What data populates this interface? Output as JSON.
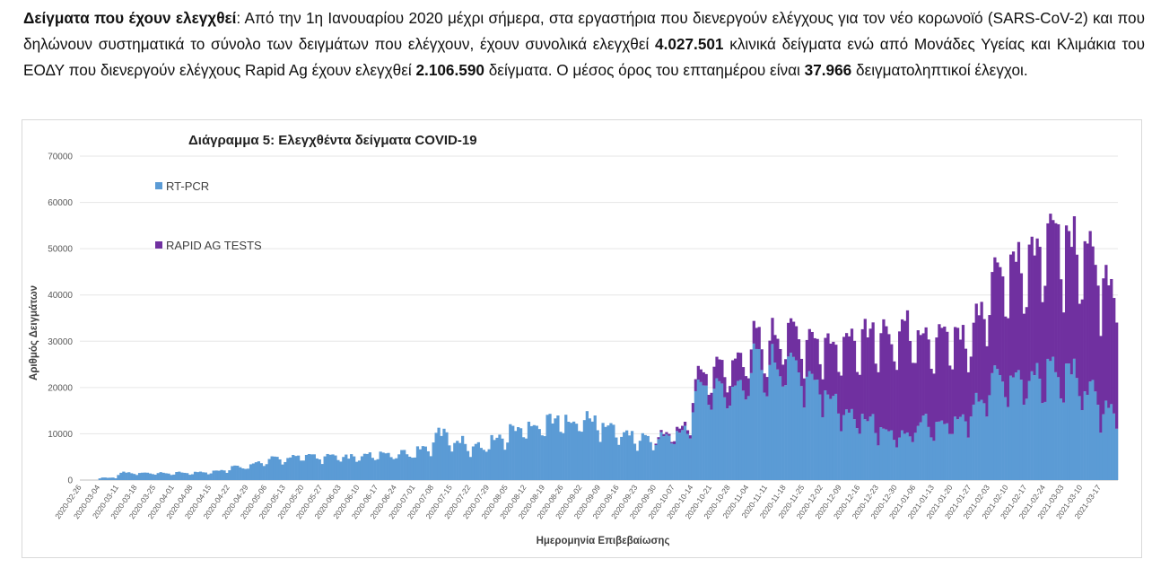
{
  "intro": {
    "lead": "Δείγματα που έχουν ελεγχθεί",
    "t1": ": Από την 1η Ιανουαρίου 2020 μέχρι σήμερα, στα εργαστήρια που διενεργούν ελέγχους για τον νέο κορωνοϊό (SARS-CoV-2) και που δηλώνουν συστηματικά το σύνολο των δειγμάτων που ελέγχουν, έχουν συνολικά ελεγχθεί ",
    "total_clinical": "4.027.501",
    "t2": " κλινικά δείγματα ενώ από Μονάδες Υγείας και Κλιμάκια του ΕΟΔΥ που διενεργούν ελέγχους Rapid Ag έχουν ελεγχθεί ",
    "total_rapid": "2.106.590",
    "t3": " δείγματα. Ο μέσος όρος του επταημέρου είναι ",
    "avg7": "37.966",
    "t4": " δειγματοληπτικοί έλεγχοι."
  },
  "chart_data": {
    "type": "bar",
    "stacked": true,
    "title": "Διάγραμμα 5: Ελεγχθέντα δείγματα COVID-19",
    "xlabel": "Ημερομηνία Επιβεβαίωσης",
    "ylabel": "Αριθμός Δειγμάτων",
    "ylim": [
      0,
      70000
    ],
    "yticks": [
      0,
      10000,
      20000,
      30000,
      40000,
      50000,
      60000,
      70000
    ],
    "xticks": [
      "2020-02-26",
      "2020-03-04",
      "2020-03-11",
      "2020-03-18",
      "2020-03-25",
      "2020-04-01",
      "2020-04-08",
      "2020-04-15",
      "2020-04-22",
      "2020-04-29",
      "2020-05-06",
      "2020-05-13",
      "2020-05-20",
      "2020-05-27",
      "2020-06-03",
      "2020-06-10",
      "2020-06-17",
      "2020-06-24",
      "2020-07-01",
      "2020-07-08",
      "2020-07-15",
      "2020-07-22",
      "2020-07-29",
      "2020-08-05",
      "2020-08-12",
      "2020-08-19",
      "2020-08-26",
      "2020-09-02",
      "2020-09-09",
      "2020-09-16",
      "2020-09-23",
      "2020-09-30",
      "2020-10-07",
      "2020-10-14",
      "2020-10-21",
      "2020-10-28",
      "2020-11-04",
      "2020-11-11",
      "2020-11-18",
      "2020-11-25",
      "2020-12-02",
      "2020-12-09",
      "2020-12-16",
      "2020-12-23",
      "2020-12-30",
      "2021-01-06",
      "2021-01-13",
      "2021-01-20",
      "2021-01-27",
      "2021-02-03",
      "2021-02-10",
      "2021-02-17",
      "2021-02-24",
      "2021-03-03",
      "2021-03-10",
      "2021-03-17"
    ],
    "legend_position": "top-left",
    "series": [
      {
        "name": "RT-PCR",
        "color": "#5b9bd5",
        "weekly": [
          0,
          500,
          1500,
          1400,
          1400,
          1500,
          1600,
          2000,
          2700,
          3500,
          4300,
          4800,
          5000,
          4800,
          4700,
          5000,
          5300,
          5500,
          6500,
          9500,
          8000,
          7000,
          8500,
          10500,
          11500,
          12500,
          12500,
          12500,
          11000,
          9500,
          8500,
          9000,
          10000,
          19000,
          19000,
          20000,
          24000,
          24000,
          24000,
          21000,
          17000,
          14000,
          13000,
          10000,
          9500,
          12000,
          11500,
          12000,
          17000,
          22000,
          21000,
          21500,
          23000,
          22000,
          18000,
          14000
        ]
      },
      {
        "name": "RAPID AG TESTS",
        "color": "#7030a0",
        "weekly": [
          0,
          0,
          0,
          0,
          0,
          0,
          0,
          0,
          0,
          0,
          0,
          0,
          0,
          0,
          0,
          0,
          0,
          0,
          0,
          0,
          0,
          0,
          0,
          0,
          0,
          0,
          0,
          0,
          0,
          0,
          0,
          400,
          800,
          2500,
          4500,
          5500,
          4500,
          5500,
          7000,
          8000,
          11000,
          16000,
          18000,
          20000,
          22000,
          18000,
          18000,
          17000,
          18000,
          22000,
          24000,
          26000,
          30000,
          26000,
          28000,
          26000
        ]
      }
    ]
  }
}
